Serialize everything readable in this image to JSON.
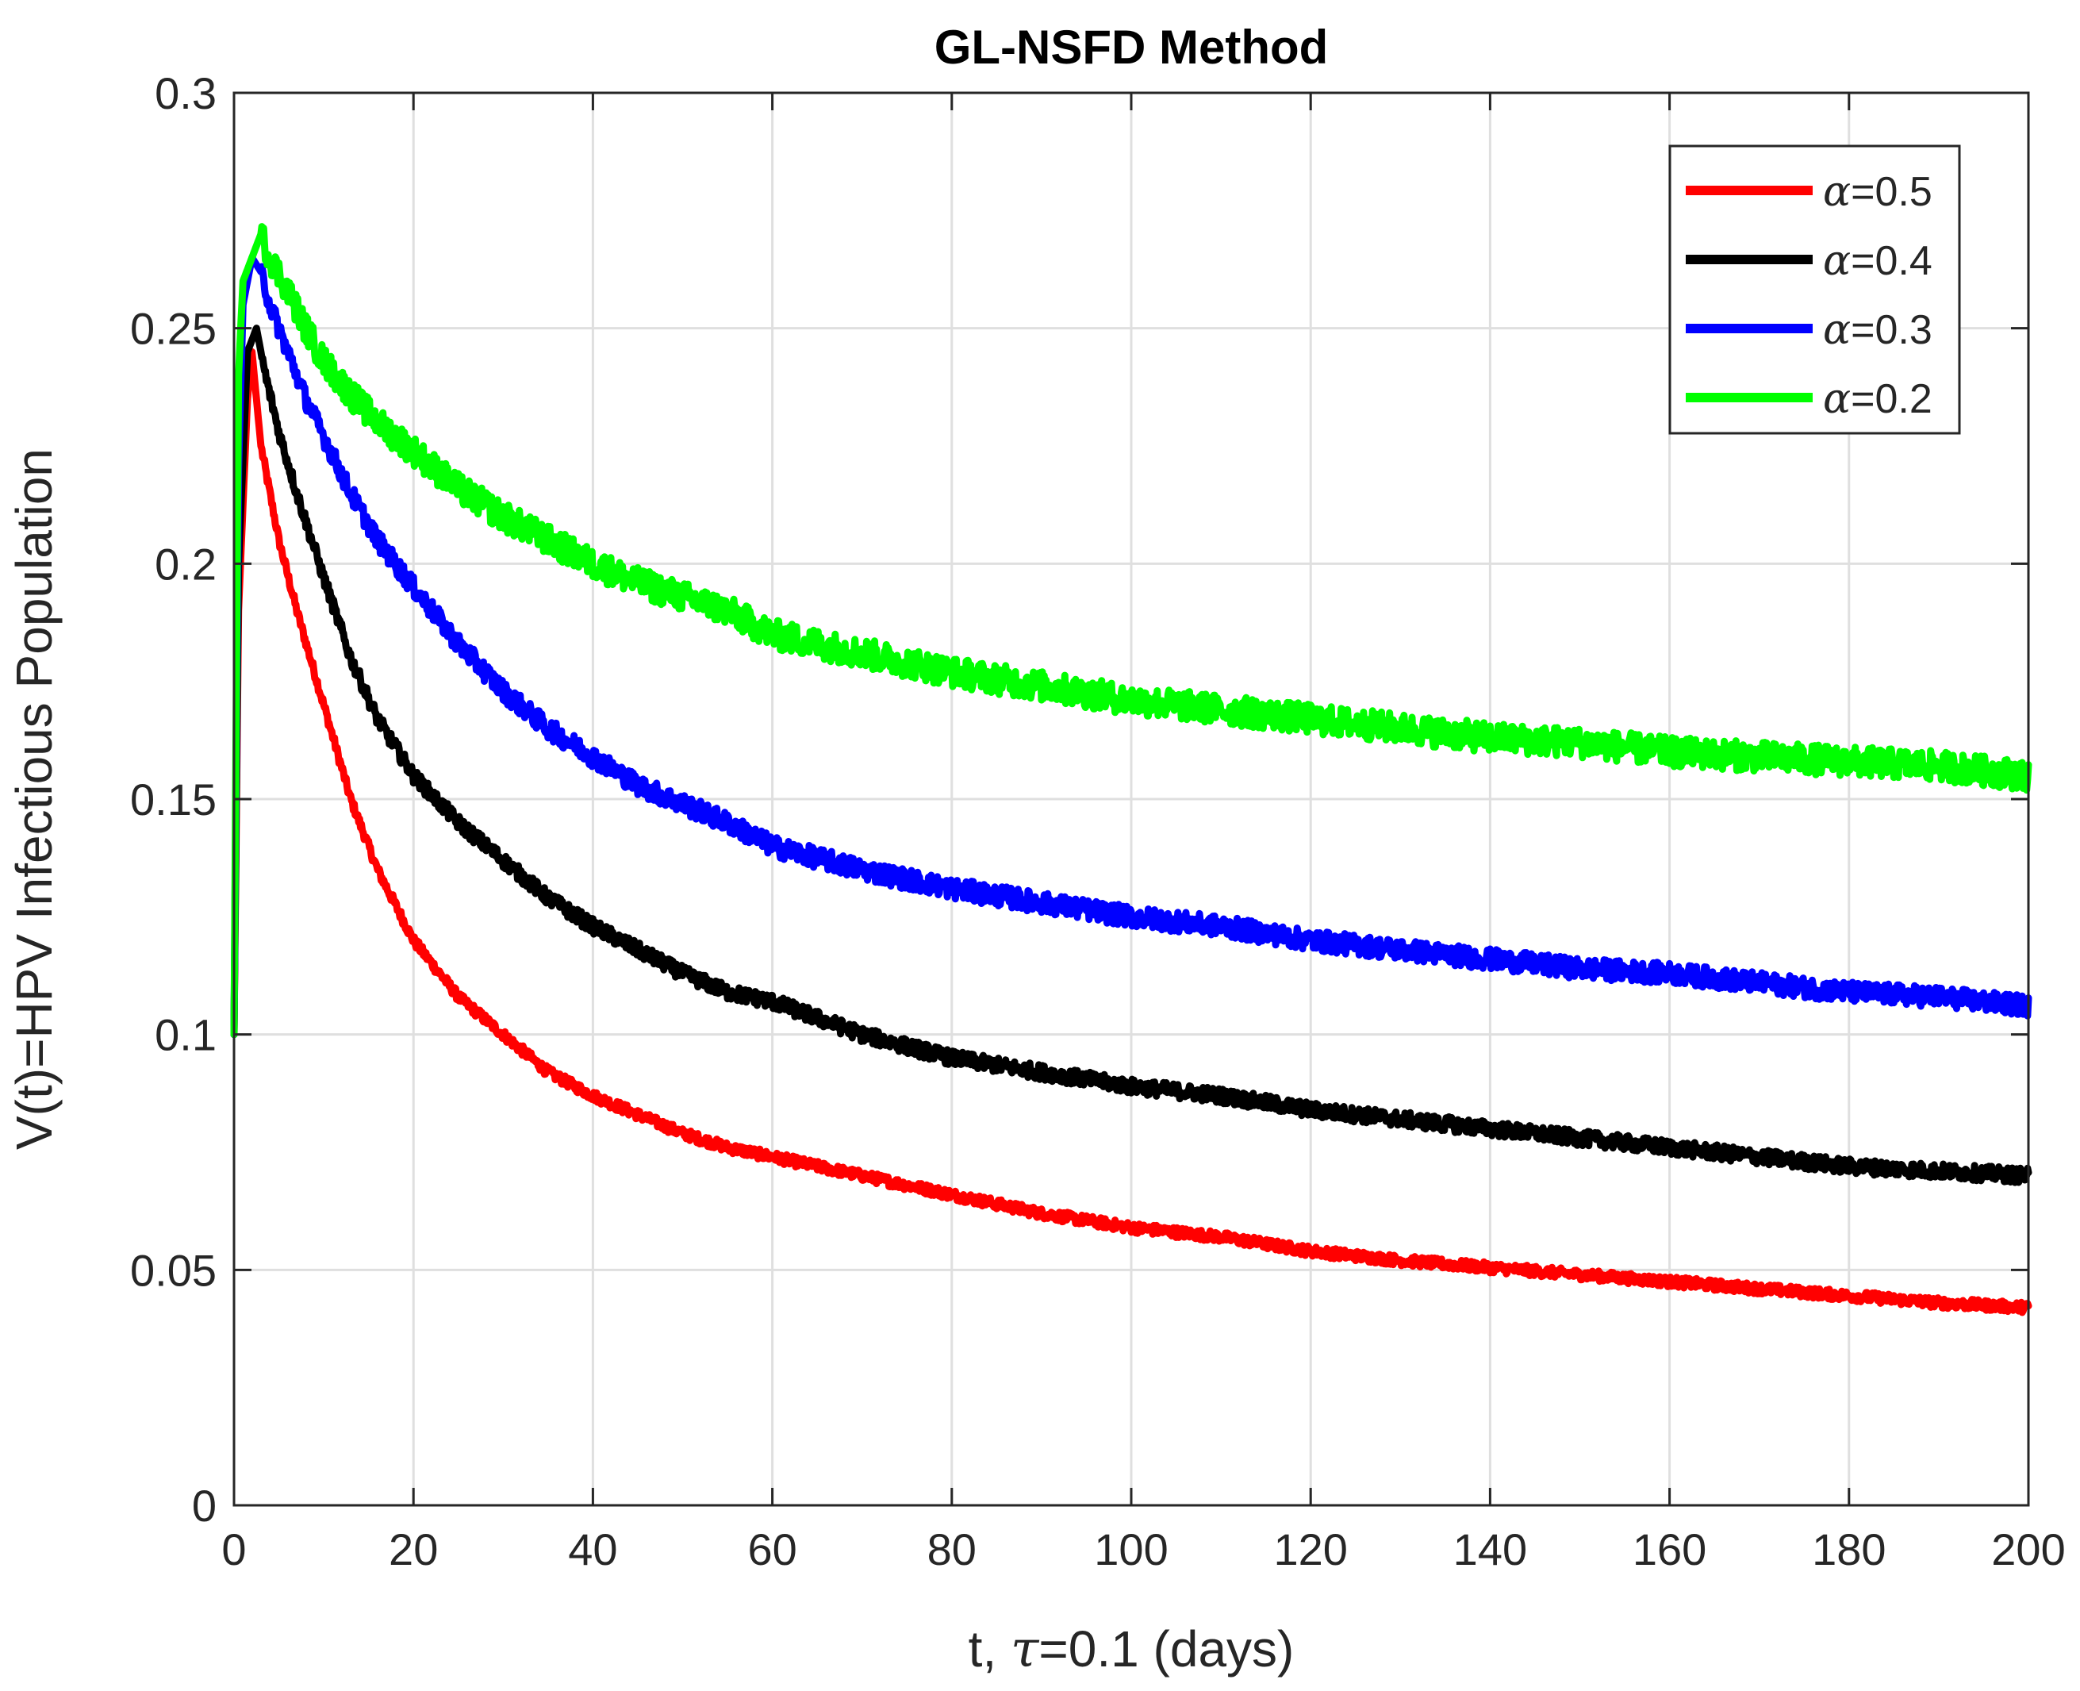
{
  "chart_data": {
    "type": "line",
    "title": "GL-NSFD Method",
    "xlabel": "t, τ=0.1 (days)",
    "xlabel_prefix": "t, ",
    "xlabel_symbol": "τ",
    "xlabel_suffix": "=0.1 (days)",
    "ylabel": "V(t)=HPV Infectious Population",
    "xlim": [
      0,
      200
    ],
    "ylim": [
      0,
      0.3
    ],
    "xticks": [
      0,
      20,
      40,
      60,
      80,
      100,
      120,
      140,
      160,
      180,
      200
    ],
    "yticks": [
      0,
      0.05,
      0.1,
      0.15,
      0.2,
      0.25,
      0.3
    ],
    "xtick_labels": [
      "0",
      "20",
      "40",
      "60",
      "80",
      "100",
      "120",
      "140",
      "160",
      "180",
      "200"
    ],
    "ytick_labels": [
      "0",
      "0.05",
      "0.1",
      "0.15",
      "0.2",
      "0.25",
      "0.3"
    ],
    "grid": true,
    "legend_position": "top-right",
    "colors": {
      "axes": "#262626",
      "grid": "#dfdfdf"
    },
    "series": [
      {
        "name": "α=0.5",
        "symbol": "α",
        "value_label": "=0.5",
        "color": "#ff0000",
        "x": [
          0,
          0.5,
          1.5,
          2,
          3,
          5,
          7,
          10,
          13,
          16,
          20,
          25,
          30,
          35,
          40,
          45,
          50,
          55,
          60,
          70,
          80,
          90,
          100,
          110,
          120,
          130,
          140,
          150,
          160,
          170,
          180,
          190,
          200
        ],
        "values": [
          0.1,
          0.19,
          0.235,
          0.245,
          0.225,
          0.205,
          0.19,
          0.17,
          0.15,
          0.135,
          0.12,
          0.108,
          0.1,
          0.092,
          0.087,
          0.083,
          0.079,
          0.076,
          0.074,
          0.07,
          0.066,
          0.062,
          0.059,
          0.057,
          0.054,
          0.052,
          0.0505,
          0.049,
          0.0475,
          0.046,
          0.0445,
          0.043,
          0.042
        ]
      },
      {
        "name": "α=0.4",
        "symbol": "α",
        "value_label": "=0.4",
        "color": "#000000",
        "x": [
          0,
          0.5,
          1.5,
          2.5,
          3.5,
          5,
          7,
          10,
          13,
          16,
          20,
          25,
          30,
          35,
          40,
          45,
          50,
          55,
          60,
          70,
          80,
          90,
          100,
          110,
          120,
          130,
          140,
          150,
          160,
          170,
          180,
          190,
          200
        ],
        "values": [
          0.1,
          0.2,
          0.245,
          0.25,
          0.24,
          0.228,
          0.215,
          0.197,
          0.18,
          0.167,
          0.155,
          0.145,
          0.137,
          0.129,
          0.123,
          0.118,
          0.113,
          0.109,
          0.107,
          0.1,
          0.095,
          0.092,
          0.089,
          0.087,
          0.084,
          0.082,
          0.08,
          0.078,
          0.076,
          0.074,
          0.072,
          0.071,
          0.07
        ]
      },
      {
        "name": "α=0.3",
        "symbol": "α",
        "value_label": "=0.3",
        "color": "#0000ff",
        "x": [
          0,
          0.5,
          1,
          2,
          3,
          4,
          6,
          8,
          10,
          13,
          16,
          20,
          25,
          30,
          35,
          40,
          45,
          50,
          55,
          60,
          70,
          80,
          90,
          100,
          110,
          120,
          130,
          140,
          150,
          160,
          170,
          180,
          190,
          200
        ],
        "values": [
          0.1,
          0.22,
          0.255,
          0.265,
          0.262,
          0.255,
          0.245,
          0.235,
          0.227,
          0.215,
          0.205,
          0.195,
          0.183,
          0.173,
          0.165,
          0.159,
          0.153,
          0.149,
          0.145,
          0.14,
          0.135,
          0.131,
          0.128,
          0.125,
          0.123,
          0.12,
          0.118,
          0.116,
          0.114,
          0.113,
          0.111,
          0.109,
          0.108,
          0.106
        ]
      },
      {
        "name": "α=0.2",
        "symbol": "α",
        "value_label": "=0.2",
        "color": "#00ff00",
        "x": [
          0,
          0.5,
          1,
          2,
          3,
          4,
          6,
          8,
          10,
          13,
          16,
          20,
          25,
          30,
          35,
          40,
          45,
          50,
          55,
          60,
          70,
          80,
          90,
          100,
          110,
          120,
          130,
          140,
          150,
          160,
          170,
          180,
          190,
          200
        ],
        "values": [
          0.1,
          0.24,
          0.26,
          0.265,
          0.27,
          0.265,
          0.258,
          0.25,
          0.243,
          0.236,
          0.23,
          0.224,
          0.216,
          0.21,
          0.205,
          0.2,
          0.196,
          0.193,
          0.19,
          0.185,
          0.181,
          0.177,
          0.174,
          0.171,
          0.169,
          0.167,
          0.165,
          0.163,
          0.162,
          0.16,
          0.159,
          0.158,
          0.157,
          0.155
        ]
      }
    ]
  }
}
